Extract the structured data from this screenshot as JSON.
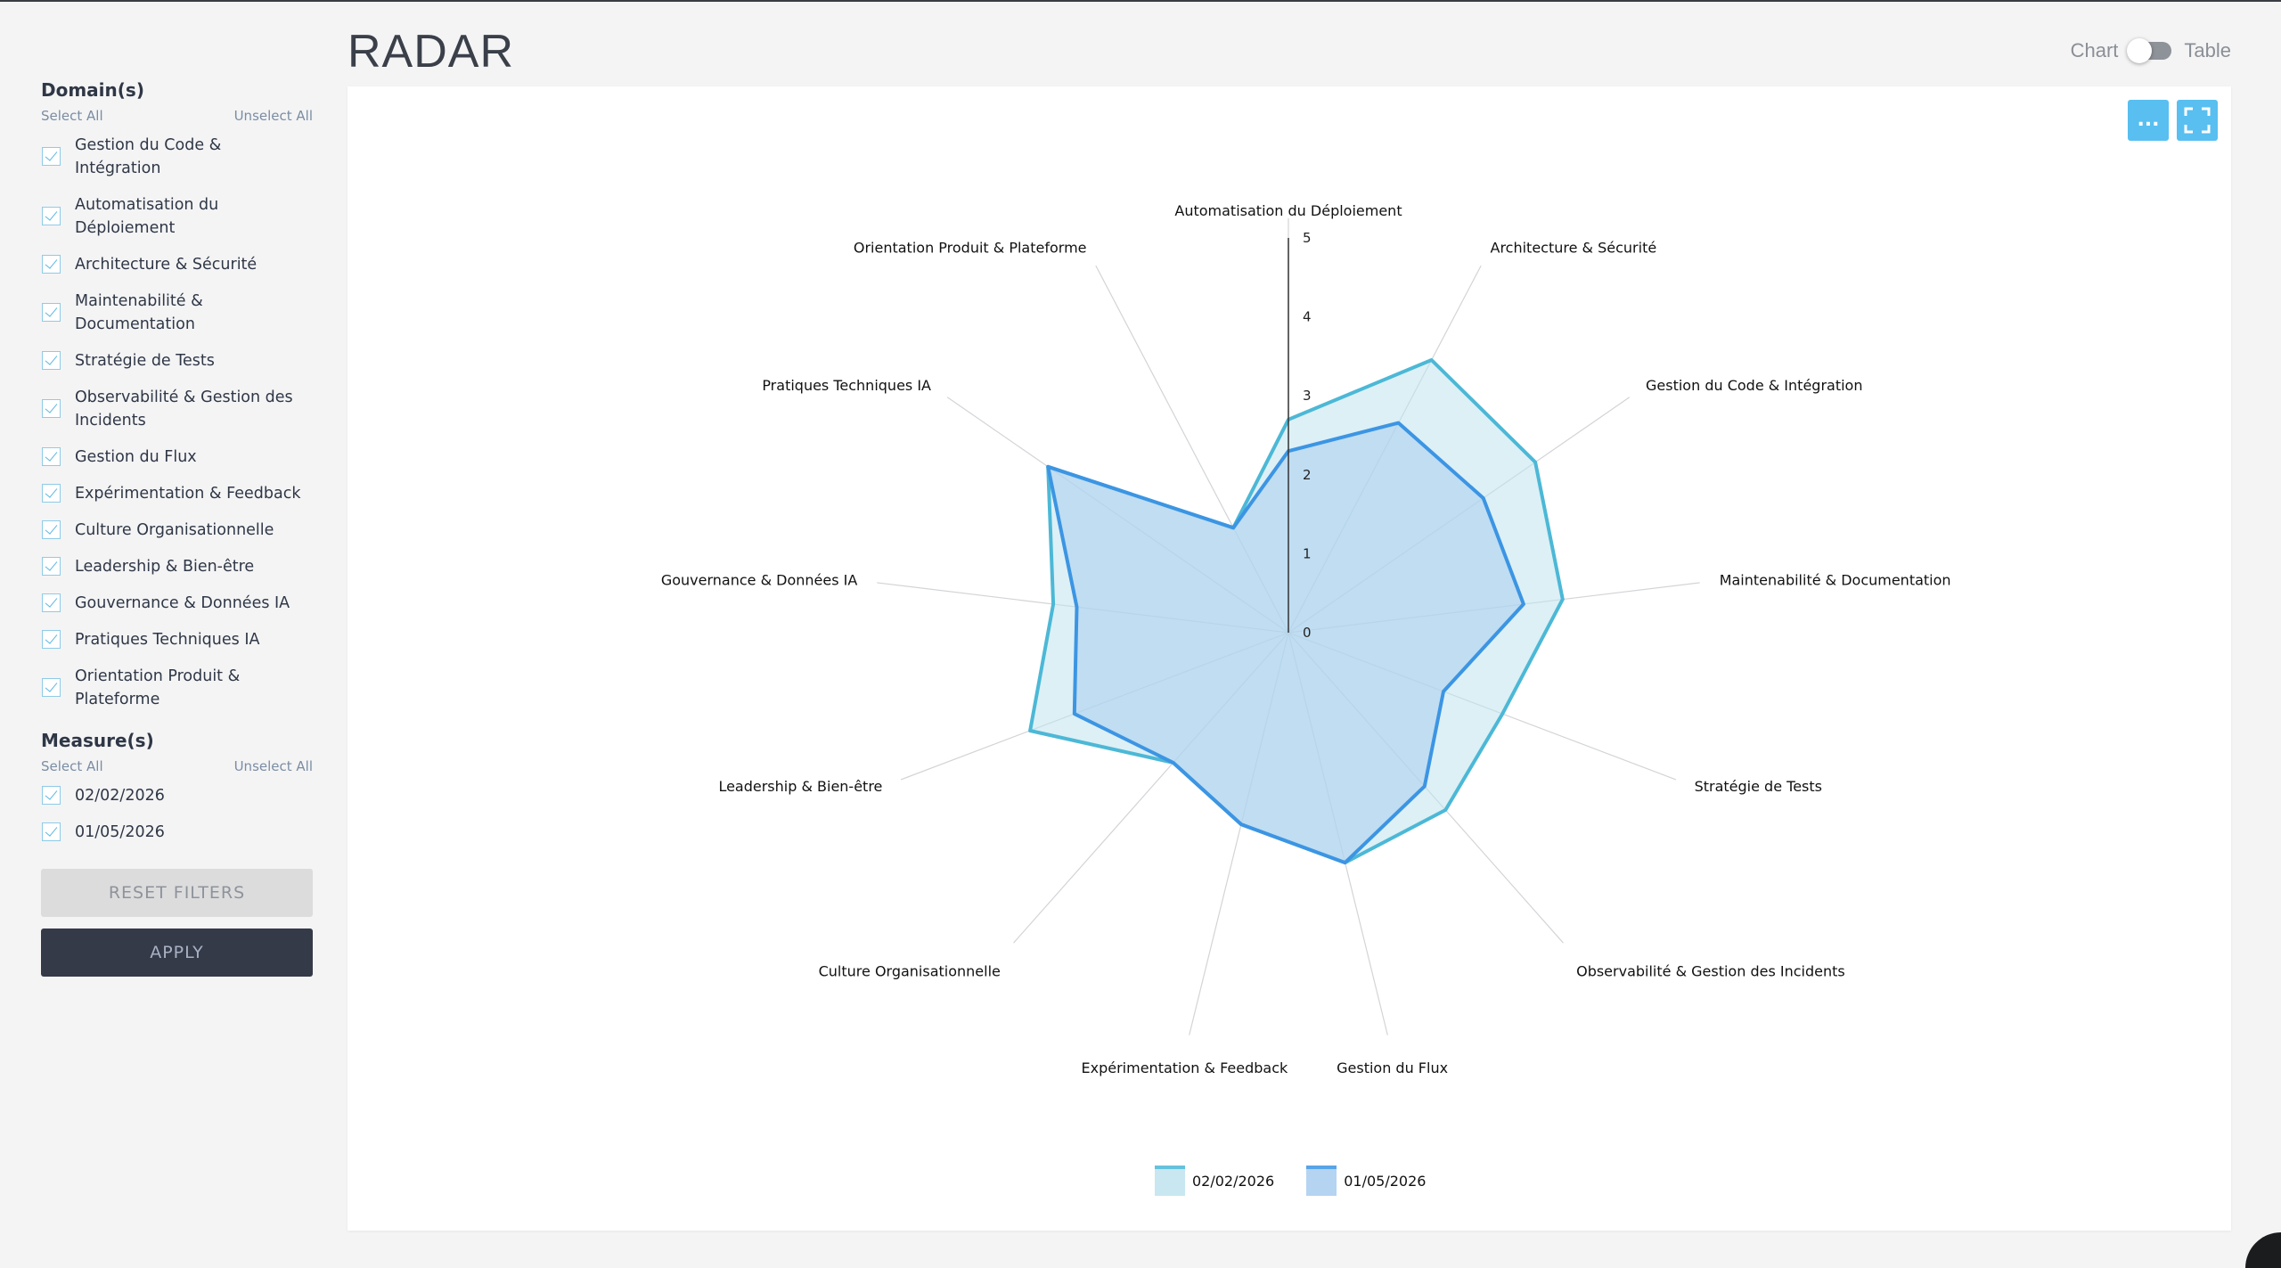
{
  "header": {
    "title": "RADAR",
    "toggle_left": "Chart",
    "toggle_right": "Table"
  },
  "sidebar": {
    "domains": {
      "title": "Domain(s)",
      "select_all": "Select All",
      "unselect_all": "Unselect All",
      "items": [
        {
          "label": "Gestion du Code & Intégration",
          "checked": true
        },
        {
          "label": "Automatisation du Déploiement",
          "checked": true
        },
        {
          "label": "Architecture & Sécurité",
          "checked": true
        },
        {
          "label": "Maintenabilité & Documentation",
          "checked": true
        },
        {
          "label": "Stratégie de Tests",
          "checked": true
        },
        {
          "label": "Observabilité & Gestion des Incidents",
          "checked": true
        },
        {
          "label": "Gestion du Flux",
          "checked": true
        },
        {
          "label": "Expérimentation & Feedback",
          "checked": true
        },
        {
          "label": "Culture Organisationnelle",
          "checked": true
        },
        {
          "label": "Leadership & Bien-être",
          "checked": true
        },
        {
          "label": "Gouvernance & Données IA",
          "checked": true
        },
        {
          "label": "Pratiques Techniques IA",
          "checked": true
        },
        {
          "label": "Orientation Produit & Plateforme",
          "checked": true
        }
      ]
    },
    "measures": {
      "title": "Measure(s)",
      "select_all": "Select All",
      "unselect_all": "Unselect All",
      "items": [
        {
          "label": "02/02/2026",
          "checked": true
        },
        {
          "label": "01/05/2026",
          "checked": true
        }
      ]
    },
    "reset_label": "RESET FILTERS",
    "apply_label": "APPLY"
  },
  "card": {
    "more_label": "..."
  },
  "colors": {
    "series1_stroke": "#4cb8d6",
    "series1_fill": "#bfe3ee",
    "series2_stroke": "#3c95e3",
    "series2_fill": "#a9cdef",
    "apply_bg": "#343a48",
    "accent": "#58bff0"
  },
  "chart_data": {
    "type": "radar",
    "axes": [
      "Automatisation du Déploiement",
      "Architecture & Sécurité",
      "Gestion du Code & Intégration",
      "Maintenabilité & Documentation",
      "Stratégie de Tests",
      "Observabilité & Gestion des Incidents",
      "Gestion du Flux",
      "Expérimentation & Feedback",
      "Culture Organisationnelle",
      "Leadership & Bien-être",
      "Gouvernance & Données IA",
      "Pratiques Techniques IA",
      "Orientation Produit & Plateforme"
    ],
    "range": [
      0,
      5
    ],
    "ticks": [
      "0",
      "1",
      "2",
      "3",
      "4",
      "5"
    ],
    "series": [
      {
        "name": "02/02/2026",
        "values": [
          2.7,
          3.9,
          3.8,
          3.5,
          2.9,
          3.0,
          3.0,
          2.5,
          2.2,
          3.5,
          3.0,
          3.7,
          1.5
        ]
      },
      {
        "name": "01/05/2026",
        "values": [
          2.3,
          3.0,
          3.0,
          3.0,
          2.1,
          2.6,
          3.0,
          2.5,
          2.2,
          2.9,
          2.7,
          3.7,
          1.5
        ]
      }
    ],
    "legend_position": "bottom"
  }
}
